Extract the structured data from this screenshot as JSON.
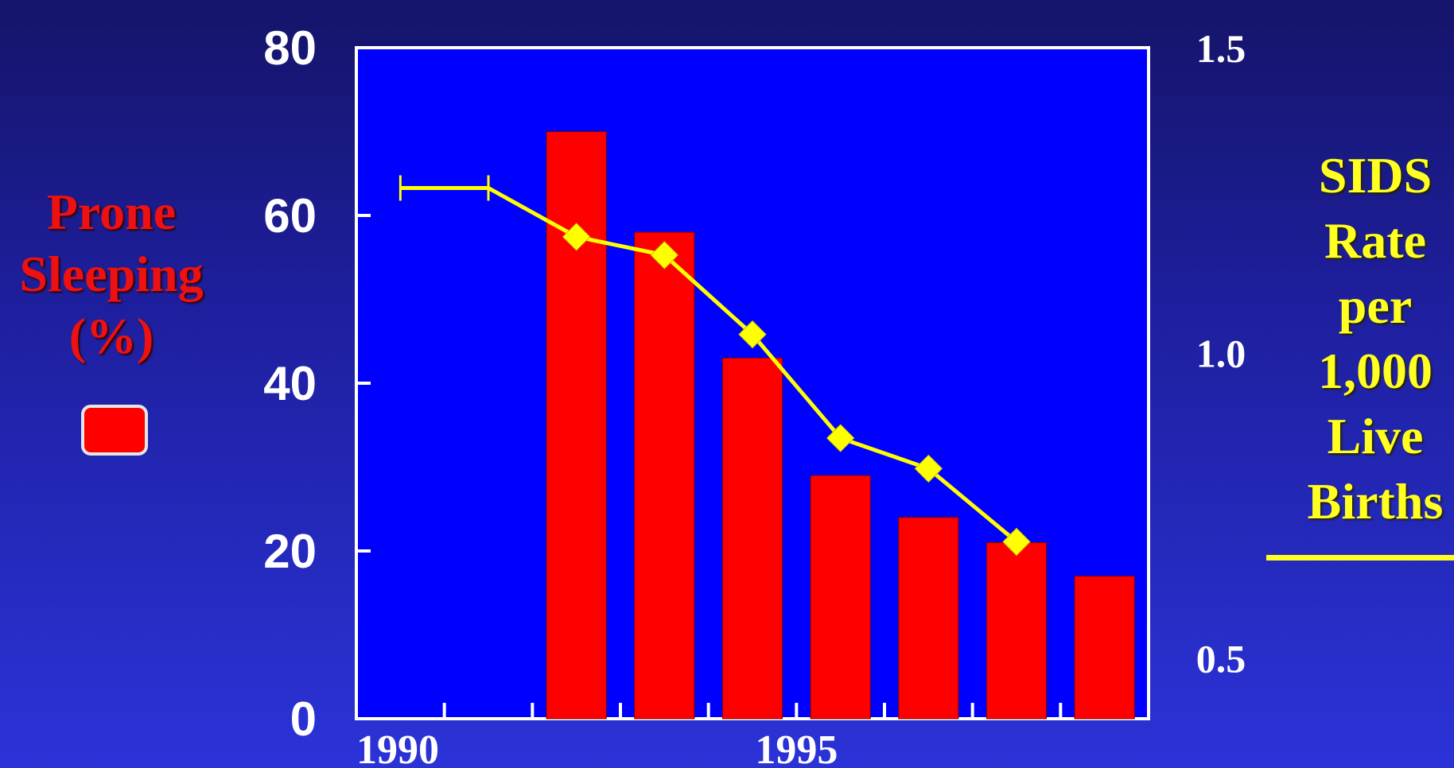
{
  "chart_data": {
    "type": "bar",
    "x_tick_labels": [
      "1990",
      "1995"
    ],
    "bars": {
      "name": "Prone Sleeping (%)",
      "color": "#ff0000",
      "categories": [
        1992,
        1993,
        1994,
        1995,
        1996,
        1997,
        1998
      ],
      "values": [
        70,
        58,
        43,
        29,
        24,
        21,
        17
      ]
    },
    "line": {
      "name": "SIDS Rate per 1,000 Live Births",
      "color": "#ffff00",
      "baseline": {
        "x_range": [
          1990,
          1991
        ],
        "value": 1.27
      },
      "points": [
        {
          "x": 1992,
          "y": 1.19
        },
        {
          "x": 1993,
          "y": 1.16
        },
        {
          "x": 1994,
          "y": 1.03
        },
        {
          "x": 1995,
          "y": 0.86
        },
        {
          "x": 1996,
          "y": 0.81
        },
        {
          "x": 1997,
          "y": 0.69
        }
      ]
    },
    "left_axis": {
      "label_lines": [
        "Prone",
        "Sleeping",
        "(%)"
      ],
      "ticks": [
        "80",
        "60",
        "40",
        "20",
        "0"
      ],
      "ylim": [
        0,
        80
      ],
      "color": "#ee1111"
    },
    "right_axis": {
      "label_lines": [
        "SIDS",
        "Rate",
        "per",
        "1,000",
        "Live",
        "Births"
      ],
      "ticks": [
        "1.5",
        "1.0",
        "0.5"
      ],
      "ylim": [
        0.4,
        1.5
      ],
      "color": "#ffff22"
    },
    "xlim": [
      1989.5,
      1998.5
    ],
    "plot_background": "#0000ff",
    "grid": false
  }
}
